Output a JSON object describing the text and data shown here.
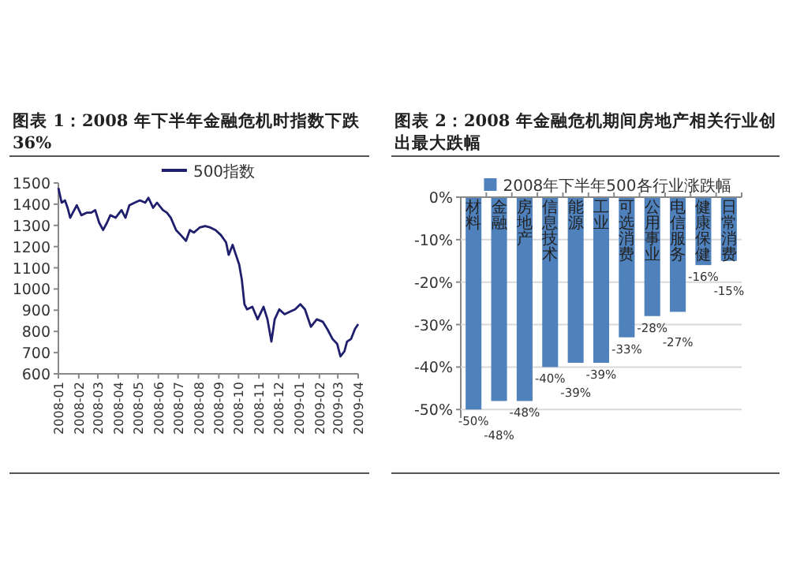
{
  "chart_data": [
    {
      "type": "line",
      "title": "图表 1：2008 年下半年金融危机时指数下跌 36%",
      "legend": "top",
      "marker": "none",
      "line_style": "solid",
      "xlim": [
        "2008-01",
        "2009-04"
      ],
      "xticks": [
        "2008-01",
        "2008-02",
        "2008-03",
        "2008-04",
        "2008-05",
        "2008-06",
        "2008-07",
        "2008-08",
        "2008-09",
        "2008-10",
        "2008-11",
        "2008-12",
        "2009-01",
        "2009-02",
        "2009-03",
        "2009-04"
      ],
      "ylim": [
        600,
        1500
      ],
      "yticks": [
        600,
        700,
        800,
        900,
        1000,
        1100,
        1200,
        1300,
        1400,
        1500
      ],
      "series": [
        {
          "name": "500指数",
          "color": "#1f1f6e",
          "x": [
            "2008-01-01",
            "2008-01-06",
            "2008-01-11",
            "2008-01-15",
            "2008-01-19",
            "2008-01-23",
            "2008-01-29",
            "2008-02-05",
            "2008-02-13",
            "2008-02-20",
            "2008-02-26",
            "2008-03-03",
            "2008-03-09",
            "2008-03-15",
            "2008-03-20",
            "2008-03-28",
            "2008-04-06",
            "2008-04-12",
            "2008-04-18",
            "2008-04-26",
            "2008-05-04",
            "2008-05-12",
            "2008-05-17",
            "2008-05-24",
            "2008-05-30",
            "2008-06-08",
            "2008-06-14",
            "2008-06-20",
            "2008-06-28",
            "2008-07-05",
            "2008-07-13",
            "2008-07-19",
            "2008-07-25",
            "2008-08-03",
            "2008-08-11",
            "2008-08-19",
            "2008-08-27",
            "2008-09-04",
            "2008-09-12",
            "2008-09-16",
            "2008-09-22",
            "2008-09-27",
            "2008-10-02",
            "2008-10-06",
            "2008-10-10",
            "2008-10-14",
            "2008-10-22",
            "2008-10-30",
            "2008-11-08",
            "2008-11-14",
            "2008-11-20",
            "2008-11-25",
            "2008-12-02",
            "2008-12-10",
            "2008-12-18",
            "2008-12-26",
            "2009-01-03",
            "2009-01-10",
            "2009-01-19",
            "2009-01-28",
            "2009-02-06",
            "2009-02-13",
            "2009-02-21",
            "2009-02-28",
            "2009-03-05",
            "2009-03-11",
            "2009-03-15",
            "2009-03-21",
            "2009-03-27",
            "2009-04-01"
          ],
          "values": [
            1477,
            1407,
            1418,
            1383,
            1336,
            1360,
            1395,
            1348,
            1360,
            1360,
            1372,
            1313,
            1278,
            1313,
            1348,
            1336,
            1372,
            1336,
            1395,
            1407,
            1418,
            1407,
            1430,
            1383,
            1407,
            1372,
            1360,
            1336,
            1278,
            1255,
            1227,
            1278,
            1266,
            1290,
            1297,
            1290,
            1278,
            1255,
            1220,
            1161,
            1208,
            1161,
            1115,
            1044,
            928,
            904,
            916,
            857,
            916,
            857,
            752,
            857,
            904,
            881,
            893,
            904,
            928,
            904,
            822,
            857,
            846,
            811,
            764,
            741,
            682,
            706,
            752,
            764,
            811,
            834
          ]
        }
      ]
    },
    {
      "type": "bar",
      "title": "图表 2：2008 年金融危机期间房地产相关行业创出最大跌幅",
      "legend": "top",
      "grid": "y",
      "categories": [
        "材料",
        "金融",
        "房地产",
        "信息技术",
        "能源",
        "工业",
        "可选消费",
        "公用事业",
        "电信服务",
        "健康保健",
        "日常消费"
      ],
      "ylim": [
        -52,
        0
      ],
      "yticks": [
        {
          "value": 0,
          "label": "0%"
        },
        {
          "value": -10,
          "label": "-10%"
        },
        {
          "value": -20,
          "label": "-20%"
        },
        {
          "value": -30,
          "label": "-30%"
        },
        {
          "value": -40,
          "label": "-40%"
        },
        {
          "value": -50,
          "label": "-50%"
        }
      ],
      "series": [
        {
          "name": "2008年下半年500各行业涨跌幅",
          "color": "#4f81bd",
          "values": [
            -50,
            -48,
            -48,
            -40,
            -39,
            -39,
            -33,
            -28,
            -27,
            -16,
            -15
          ],
          "value_labels": [
            "-50%",
            "-48%",
            "-48%",
            "-40%",
            "-39%",
            "-39%",
            "-33%",
            "-28%",
            "-27%",
            "-16%",
            "-15%"
          ]
        }
      ]
    }
  ]
}
